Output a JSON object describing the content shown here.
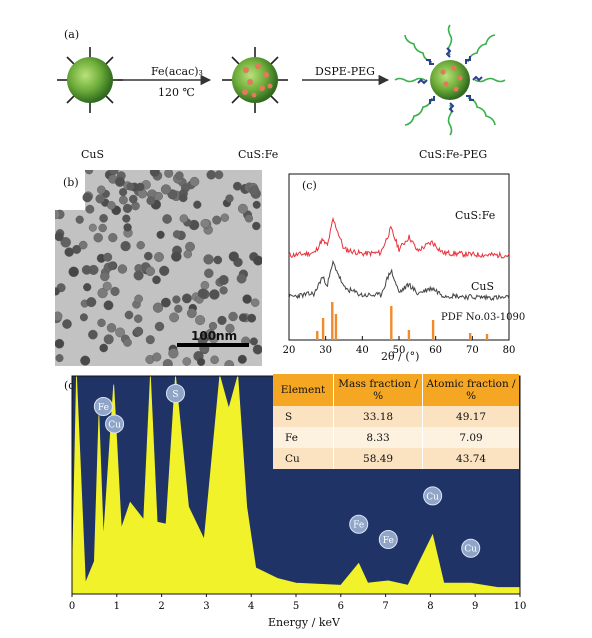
{
  "panel_a": {
    "label": "(a)",
    "step1_reagent": "Fe(acac)₃",
    "step1_condition": "120 ℃",
    "step2_reagent": "DSPE-PEG",
    "names": [
      "CuS",
      "CuS:Fe",
      "CuS:Fe-PEG"
    ]
  },
  "panel_b": {
    "label": "(b)",
    "scale_bar": "100nm"
  },
  "panel_c": {
    "label": "(c)",
    "xlabel": "2θ / (°)",
    "series_labels": [
      "CuS:Fe",
      "CuS"
    ],
    "reference_label": "PDF No.03-1090",
    "xticks": [
      "20",
      "30",
      "40",
      "50",
      "60",
      "70",
      "80"
    ],
    "colors": {
      "cusfe": "#e8333d",
      "cus": "#444444",
      "ref": "#f08a2c"
    }
  },
  "panel_d": {
    "label": "(d)",
    "xlabel": "Energy / keV",
    "xticks": [
      "0",
      "1",
      "2",
      "3",
      "4",
      "5",
      "6",
      "7",
      "8",
      "9",
      "10"
    ],
    "peak_labels": [
      "Fe",
      "Cu",
      "S",
      "Fe",
      "Fe",
      "Cu",
      "Cu"
    ],
    "colors": {
      "bg": "#1f3366",
      "spectrum": "#f2f22a",
      "table_header": "#f5a623",
      "table_row1": "#fbe3c2",
      "table_row2": "#fdf1e0"
    },
    "table": {
      "headers": [
        "Element",
        "Mass fraction / %",
        "Atomic fraction / %"
      ],
      "rows": [
        [
          "S",
          "33.18",
          "49.17"
        ],
        [
          "Fe",
          "8.33",
          "7.09"
        ],
        [
          "Cu",
          "58.49",
          "43.74"
        ]
      ]
    }
  },
  "chart_data": [
    {
      "type": "line",
      "xlabel": "2θ / (°)",
      "xlim": [
        20,
        80
      ],
      "series": [
        {
          "name": "CuS:Fe",
          "x": [
            20,
            27,
            29,
            30.5,
            32,
            33,
            35,
            40,
            45,
            47.8,
            50,
            52.8,
            55,
            59,
            62,
            70,
            80
          ],
          "values": [
            0.55,
            0.58,
            0.72,
            0.66,
            0.95,
            0.85,
            0.62,
            0.57,
            0.58,
            0.85,
            0.62,
            0.76,
            0.6,
            0.7,
            0.58,
            0.56,
            0.55
          ]
        },
        {
          "name": "CuS",
          "x": [
            20,
            27,
            29,
            30.5,
            32,
            33,
            35,
            40,
            45,
            47.8,
            50,
            52.8,
            55,
            59,
            62,
            70,
            80
          ],
          "values": [
            0.2,
            0.24,
            0.42,
            0.34,
            0.58,
            0.5,
            0.3,
            0.22,
            0.22,
            0.5,
            0.25,
            0.34,
            0.24,
            0.3,
            0.22,
            0.2,
            0.19
          ]
        },
        {
          "name": "PDF No.03-1090",
          "x": [
            27.7,
            29.3,
            31.8,
            32.8,
            47.9,
            52.7,
            59.3,
            69.4,
            74.0
          ],
          "values": [
            0.05,
            0.18,
            0.34,
            0.22,
            0.3,
            0.06,
            0.16,
            0.03,
            0.02
          ]
        }
      ]
    },
    {
      "type": "area",
      "xlabel": "Energy / keV",
      "xlim": [
        0,
        10
      ],
      "x": [
        0,
        0.1,
        0.3,
        0.5,
        0.6,
        0.7,
        0.93,
        1.1,
        1.3,
        1.6,
        1.75,
        1.9,
        2.1,
        2.31,
        2.6,
        2.95,
        3.3,
        3.5,
        3.7,
        3.9,
        4.1,
        4.6,
        5,
        6,
        6.4,
        6.6,
        7.06,
        7.5,
        8.05,
        8.3,
        8.9,
        9.5,
        10
      ],
      "values": [
        0.0,
        1.0,
        0.05,
        0.15,
        0.82,
        0.25,
        0.96,
        0.3,
        0.42,
        0.34,
        1.0,
        0.33,
        0.32,
        1.0,
        0.4,
        0.25,
        1.0,
        0.85,
        1.0,
        0.4,
        0.12,
        0.07,
        0.05,
        0.04,
        0.14,
        0.05,
        0.06,
        0.04,
        0.27,
        0.05,
        0.05,
        0.03,
        0.03
      ]
    }
  ]
}
